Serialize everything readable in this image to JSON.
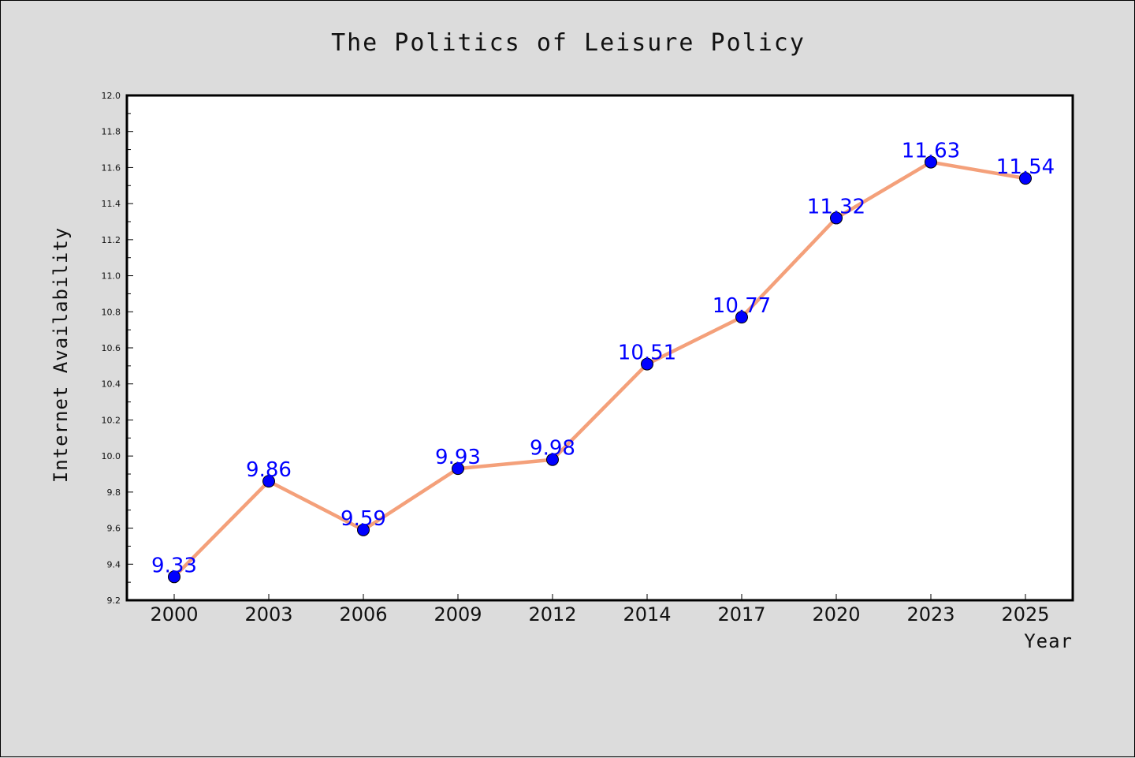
{
  "chart_data": {
    "type": "line",
    "title": "The Politics of Leisure Policy",
    "xlabel": "Year",
    "ylabel": "Internet Availability",
    "categories": [
      "2000",
      "2003",
      "2006",
      "2009",
      "2012",
      "2014",
      "2017",
      "2020",
      "2023",
      "2025"
    ],
    "values": [
      9.33,
      9.86,
      9.59,
      9.93,
      9.98,
      10.51,
      10.77,
      11.32,
      11.63,
      11.54
    ],
    "data_labels": [
      "9.33",
      "9.86",
      "9.59",
      "9.93",
      "9.98",
      "10.51",
      "10.77",
      "11.32",
      "11.63",
      "11.54"
    ],
    "ylim": [
      9.2,
      12.0
    ],
    "yticks": [
      "9.2",
      "9.4",
      "9.6",
      "9.8",
      "10.0",
      "10.2",
      "10.4",
      "10.6",
      "10.8",
      "11.0",
      "11.2",
      "11.4",
      "11.6",
      "11.8",
      "12.0"
    ],
    "grid": false,
    "colors": {
      "line": "#f4a07a",
      "marker": "#0000ff",
      "label": "#0000ff",
      "background": "#dcdcdc",
      "plot_background": "#ffffff"
    }
  }
}
